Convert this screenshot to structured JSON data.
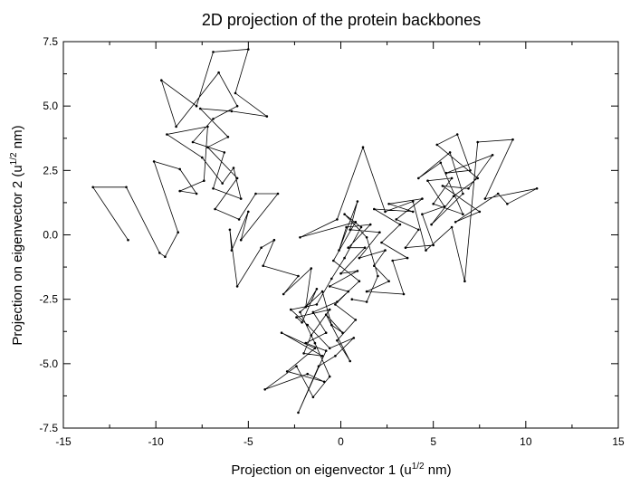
{
  "chart_data": {
    "type": "line",
    "title": "2D projection of the protein backbones",
    "xlabel_main": "Projection on eigenvector 1 (u",
    "xlabel_sup": "1/2",
    "xlabel_end": " nm)",
    "ylabel_main": "Projection on eigenvector 2 (u",
    "ylabel_sup": "1/2",
    "ylabel_end": " nm)",
    "xlim": [
      -15,
      15
    ],
    "ylim": [
      -7.5,
      7.5
    ],
    "x_ticks": [
      -15,
      -10,
      -5,
      0,
      5,
      10,
      15
    ],
    "x_tick_labels": [
      "-15",
      "-10",
      "-5",
      "0",
      "5",
      "10",
      "15"
    ],
    "y_ticks": [
      -7.5,
      -5.0,
      -2.5,
      0.0,
      2.5,
      5.0,
      7.5
    ],
    "y_tick_labels": [
      "-7.5",
      "-5.0",
      "-2.5",
      "0.0",
      "2.5",
      "5.0",
      "7.5"
    ],
    "grid": false,
    "legend": "none",
    "series": [
      {
        "points": [
          [
            -11.5,
            -0.2
          ],
          [
            -13.4,
            1.85
          ],
          [
            -11.6,
            1.85
          ],
          [
            -9.8,
            -0.7
          ],
          [
            -9.5,
            -0.85
          ],
          [
            -8.8,
            0.1
          ],
          [
            -10.1,
            2.85
          ],
          [
            -8.7,
            2.55
          ],
          [
            -7.8,
            1.6
          ],
          [
            -8.7,
            1.7
          ],
          [
            -7.4,
            2.1
          ],
          [
            -7.2,
            4.2
          ],
          [
            -9.4,
            3.9
          ],
          [
            -7.5,
            3.0
          ],
          [
            -6.4,
            2.0
          ],
          [
            -5.8,
            2.6
          ],
          [
            -5.4,
            1.4
          ],
          [
            -6.9,
            1.8
          ],
          [
            -6.3,
            3.2
          ],
          [
            -8.0,
            3.6
          ],
          [
            -6.9,
            4.5
          ],
          [
            -5.6,
            5.0
          ],
          [
            -6.6,
            6.3
          ],
          [
            -8.9,
            4.2
          ],
          [
            -9.7,
            6.0
          ],
          [
            -7.8,
            5.0
          ],
          [
            -6.9,
            7.1
          ],
          [
            -5.0,
            7.2
          ],
          [
            -5.7,
            5.5
          ],
          [
            -4.0,
            4.6
          ],
          [
            -5.9,
            4.8
          ],
          [
            -7.6,
            4.9
          ],
          [
            -6.1,
            3.8
          ],
          [
            -7.2,
            3.4
          ],
          [
            -5.6,
            2.2
          ],
          [
            -6.8,
            1.0
          ],
          [
            -5.5,
            0.6
          ],
          [
            -4.6,
            1.6
          ],
          [
            -3.4,
            1.6
          ],
          [
            -5.4,
            -0.2
          ],
          [
            -5.0,
            0.9
          ],
          [
            -5.9,
            -0.6
          ],
          [
            -6.0,
            0.2
          ],
          [
            -5.6,
            -2.0
          ],
          [
            -4.3,
            -0.5
          ],
          [
            -3.6,
            -0.2
          ],
          [
            -4.2,
            -1.2
          ],
          [
            -2.3,
            -1.6
          ],
          [
            -3.1,
            -2.3
          ],
          [
            -1.6,
            -1.3
          ],
          [
            -1.9,
            -2.8
          ],
          [
            -1.3,
            -2.1
          ],
          [
            -2.1,
            -3.4
          ],
          [
            -2.4,
            -3.2
          ],
          [
            -0.6,
            -2.9
          ],
          [
            -1.6,
            -3.9
          ],
          [
            -2.0,
            -4.6
          ],
          [
            -1.0,
            -4.7
          ],
          [
            -3.2,
            -3.8
          ],
          [
            -1.4,
            -4.4
          ],
          [
            -2.9,
            -5.3
          ],
          [
            -0.9,
            -5.7
          ],
          [
            -1.8,
            -5.4
          ],
          [
            -4.1,
            -6.0
          ],
          [
            -2.4,
            -5.1
          ],
          [
            -1.5,
            -6.3
          ],
          [
            -0.6,
            -5.5
          ],
          [
            -1.4,
            -4.2
          ],
          [
            -2.2,
            -3.0
          ],
          [
            -1.0,
            -2.2
          ],
          [
            -0.5,
            -3.5
          ],
          [
            0.1,
            -3.8
          ],
          [
            -0.8,
            -3.1
          ],
          [
            0.5,
            -4.9
          ],
          [
            -0.2,
            -4.1
          ],
          [
            0.8,
            -3.3
          ],
          [
            -0.3,
            -2.7
          ],
          [
            0.4,
            -2.2
          ],
          [
            -0.6,
            -2.0
          ],
          [
            0.9,
            -1.4
          ],
          [
            0.0,
            -1.5
          ],
          [
            1.3,
            -0.5
          ],
          [
            0.4,
            -0.5
          ],
          [
            1.6,
            0.4
          ],
          [
            0.3,
            0.3
          ],
          [
            -0.1,
            -0.6
          ],
          [
            0.9,
            1.3
          ],
          [
            0.5,
            0.2
          ],
          [
            2.1,
            0.1
          ],
          [
            1.0,
            -0.9
          ],
          [
            2.4,
            -0.6
          ],
          [
            1.8,
            -1.2
          ],
          [
            2.6,
            -1.8
          ],
          [
            1.4,
            -2.2
          ],
          [
            3.4,
            -2.3
          ],
          [
            2.8,
            -1.0
          ],
          [
            3.6,
            -0.9
          ],
          [
            2.2,
            -0.3
          ],
          [
            3.2,
            0.4
          ],
          [
            1.8,
            1.0
          ],
          [
            3.9,
            0.9
          ],
          [
            2.6,
            1.2
          ],
          [
            4.4,
            1.4
          ],
          [
            3.0,
            0.6
          ],
          [
            4.2,
            0.2
          ],
          [
            3.5,
            -0.5
          ],
          [
            5.0,
            -0.4
          ],
          [
            4.4,
            0.8
          ],
          [
            5.6,
            1.1
          ],
          [
            4.7,
            2.1
          ],
          [
            6.0,
            2.2
          ],
          [
            5.0,
            1.2
          ],
          [
            6.6,
            0.8
          ],
          [
            5.4,
            2.8
          ],
          [
            4.2,
            2.2
          ],
          [
            5.9,
            3.2
          ],
          [
            6.6,
            1.6
          ],
          [
            4.9,
            0.4
          ],
          [
            6.1,
            1.5
          ],
          [
            7.4,
            2.2
          ],
          [
            5.2,
            3.5
          ],
          [
            6.3,
            3.9
          ],
          [
            7.0,
            2.5
          ],
          [
            5.7,
            2.4
          ],
          [
            8.2,
            3.1
          ],
          [
            6.9,
            1.8
          ],
          [
            5.5,
            1.9
          ],
          [
            7.5,
            0.9
          ],
          [
            6.2,
            0.5
          ],
          [
            8.5,
            1.6
          ],
          [
            9.0,
            1.2
          ],
          [
            10.6,
            1.8
          ],
          [
            7.8,
            1.4
          ],
          [
            9.3,
            3.7
          ],
          [
            7.4,
            3.6
          ],
          [
            6.7,
            -1.8
          ],
          [
            6.0,
            0.3
          ],
          [
            4.6,
            -0.6
          ],
          [
            3.9,
            1.3
          ],
          [
            2.4,
            0.9
          ],
          [
            1.2,
            3.4
          ],
          [
            -0.2,
            0.6
          ],
          [
            -2.2,
            -0.1
          ],
          [
            0.8,
            0.5
          ],
          [
            -0.4,
            -1.0
          ],
          [
            1.0,
            -1.8
          ],
          [
            -0.2,
            -2.6
          ],
          [
            -1.5,
            -3.0
          ],
          [
            -0.8,
            -3.8
          ],
          [
            -1.9,
            -4.2
          ],
          [
            -0.8,
            -4.5
          ],
          [
            -2.3,
            -6.9
          ],
          [
            -1.2,
            -5.1
          ],
          [
            -0.3,
            -4.7
          ],
          [
            0.7,
            -4.0
          ],
          [
            -0.6,
            -4.4
          ],
          [
            -1.8,
            -3.5
          ],
          [
            -2.7,
            -2.9
          ],
          [
            -1.3,
            -2.7
          ],
          [
            -0.5,
            -1.7
          ],
          [
            0.2,
            -0.9
          ],
          [
            1.1,
            0.3
          ],
          [
            0.2,
            0.8
          ],
          [
            1.4,
            -0.1
          ],
          [
            2.0,
            -1.6
          ],
          [
            1.4,
            -2.6
          ],
          [
            0.6,
            -2.5
          ]
        ]
      }
    ]
  }
}
